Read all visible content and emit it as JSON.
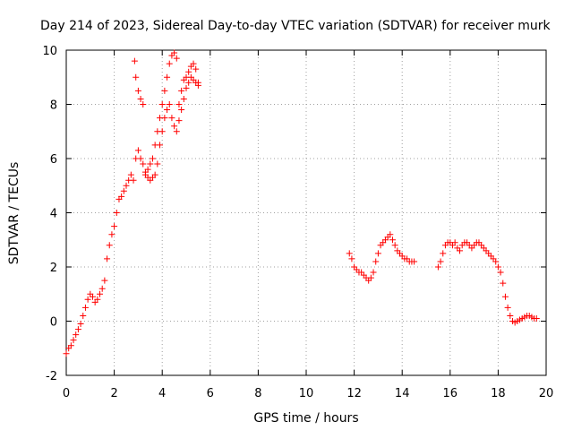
{
  "chart_data": {
    "type": "scatter",
    "title": "Day 214 of 2023, Sidereal Day-to-day VTEC variation (SDTVAR) for receiver murk",
    "xlabel": "GPS time / hours",
    "ylabel": "SDTVAR / TECUs",
    "xlim": [
      0,
      20
    ],
    "ylim": [
      -2,
      10
    ],
    "xticks": [
      0,
      2,
      4,
      6,
      8,
      10,
      12,
      14,
      16,
      18,
      20
    ],
    "yticks": [
      -2,
      0,
      2,
      4,
      6,
      8,
      10
    ],
    "grid": true,
    "marker": "plus",
    "color": "#ff0000",
    "series": [
      {
        "name": "SDTVAR",
        "x": [
          0.0,
          0.1,
          0.2,
          0.3,
          0.4,
          0.5,
          0.6,
          0.7,
          0.8,
          0.9,
          1.0,
          1.1,
          1.2,
          1.3,
          1.4,
          1.5,
          1.6,
          1.7,
          1.8,
          1.9,
          2.0,
          2.1,
          2.2,
          2.3,
          2.4,
          2.5,
          2.6,
          2.7,
          2.8,
          2.85,
          2.9,
          3.0,
          3.1,
          3.2,
          3.3,
          3.4,
          3.5,
          3.6,
          3.7,
          3.8,
          3.9,
          4.0,
          4.1,
          4.2,
          4.3,
          4.4,
          4.5,
          4.6,
          4.7,
          4.8,
          4.9,
          5.0,
          5.1,
          5.2,
          5.3,
          5.4,
          5.5,
          2.9,
          3.0,
          3.1,
          3.2,
          3.3,
          3.4,
          3.5,
          3.6,
          3.7,
          3.8,
          3.9,
          4.0,
          4.1,
          4.2,
          4.3,
          4.4,
          4.5,
          4.6,
          4.7,
          4.8,
          4.9,
          5.0,
          5.1,
          5.2,
          5.3,
          5.4,
          5.5,
          11.8,
          11.9,
          12.0,
          12.1,
          12.2,
          12.3,
          12.4,
          12.5,
          12.6,
          12.7,
          12.8,
          12.9,
          13.0,
          13.1,
          13.2,
          13.3,
          13.4,
          13.5,
          13.6,
          13.7,
          13.8,
          13.9,
          14.0,
          14.1,
          14.2,
          14.3,
          14.4,
          14.5,
          15.5,
          15.6,
          15.7,
          15.8,
          15.9,
          16.0,
          16.1,
          16.2,
          16.3,
          16.4,
          16.5,
          16.6,
          16.7,
          16.8,
          16.9,
          17.0,
          17.1,
          17.2,
          17.3,
          17.4,
          17.5,
          17.6,
          17.7,
          17.8,
          17.9,
          18.0,
          18.1,
          18.2,
          18.3,
          18.4,
          18.5,
          18.6,
          18.7,
          18.8,
          18.9,
          19.0,
          19.1,
          19.2,
          19.3,
          19.4,
          19.5,
          19.6
        ],
        "y": [
          -1.2,
          -1.0,
          -0.9,
          -0.7,
          -0.5,
          -0.3,
          -0.1,
          0.2,
          0.5,
          0.8,
          1.0,
          0.9,
          0.7,
          0.8,
          1.0,
          1.2,
          1.5,
          2.3,
          2.8,
          3.2,
          3.5,
          4.0,
          4.5,
          4.6,
          4.8,
          5.0,
          5.2,
          5.4,
          5.2,
          9.6,
          9.0,
          8.5,
          8.2,
          8.0,
          5.5,
          5.6,
          5.8,
          6.0,
          6.5,
          7.0,
          7.5,
          8.0,
          8.5,
          9.0,
          9.5,
          9.8,
          9.9,
          9.7,
          8.0,
          8.5,
          8.9,
          9.0,
          9.2,
          9.4,
          9.5,
          9.3,
          8.8,
          6.0,
          6.3,
          6.0,
          5.8,
          5.4,
          5.3,
          5.2,
          5.3,
          5.4,
          5.8,
          6.5,
          7.0,
          7.5,
          7.8,
          8.0,
          7.5,
          7.2,
          7.0,
          7.4,
          7.8,
          8.2,
          8.6,
          8.8,
          9.0,
          8.9,
          8.8,
          8.7,
          2.5,
          2.3,
          2.0,
          1.9,
          1.8,
          1.8,
          1.7,
          1.6,
          1.5,
          1.6,
          1.8,
          2.2,
          2.5,
          2.8,
          2.9,
          3.0,
          3.1,
          3.2,
          3.0,
          2.8,
          2.6,
          2.5,
          2.4,
          2.3,
          2.3,
          2.2,
          2.2,
          2.2,
          2.0,
          2.2,
          2.5,
          2.8,
          2.9,
          2.9,
          2.8,
          2.9,
          2.7,
          2.6,
          2.8,
          2.9,
          2.9,
          2.8,
          2.7,
          2.8,
          2.9,
          2.9,
          2.8,
          2.7,
          2.6,
          2.5,
          2.4,
          2.3,
          2.2,
          2.0,
          1.8,
          1.4,
          0.9,
          0.5,
          0.2,
          0.0,
          -0.05,
          0.0,
          0.05,
          0.1,
          0.15,
          0.2,
          0.2,
          0.15,
          0.1,
          0.1
        ]
      }
    ]
  }
}
